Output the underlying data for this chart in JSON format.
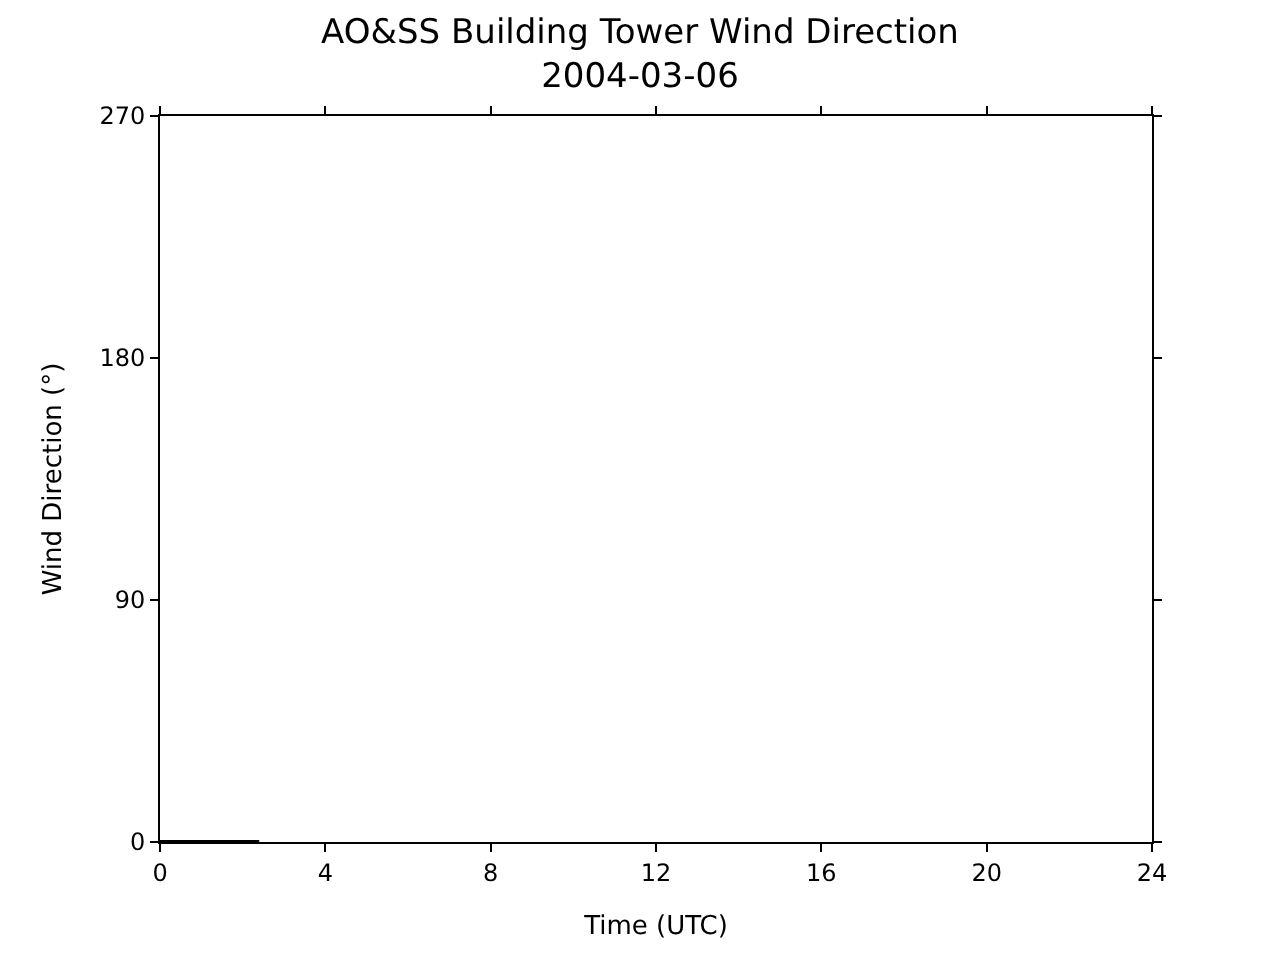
{
  "chart_data": {
    "type": "line",
    "title": "AO&SS Building Tower Wind Direction\n2004-03-06",
    "xlabel": "Time (UTC)",
    "ylabel": "Wind Direction (°)",
    "x": [
      0,
      2.4
    ],
    "series": [
      {
        "color": "#000000",
        "values": [
          0,
          0
        ]
      }
    ],
    "xlim": [
      0,
      24
    ],
    "xticks": [
      0,
      4,
      8,
      12,
      16,
      20,
      24
    ],
    "ylim": [
      0,
      270
    ],
    "yticks": [
      0,
      90,
      180,
      270
    ],
    "legend": false
  }
}
